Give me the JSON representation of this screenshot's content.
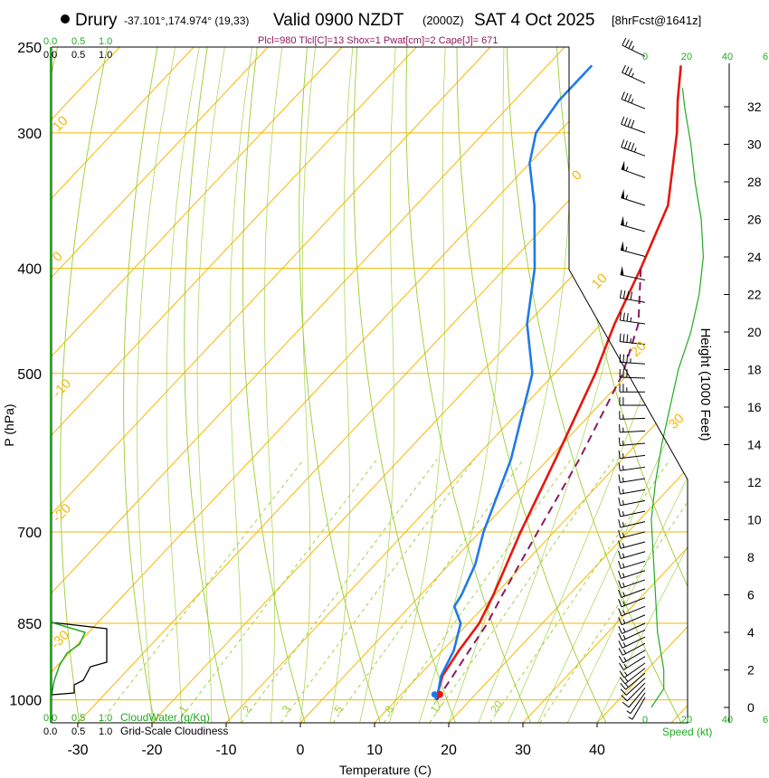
{
  "chart_data": {
    "type": "line",
    "subtype": "skew-t log-p sounding",
    "header": {
      "station": "Drury",
      "coords": "-37.101°,174.974° (19,33)",
      "valid": "Valid 0900 NZDT",
      "utc": "(2000Z)",
      "date": "SAT 4 Oct 2025",
      "fcst": "[8hrFcst@1641z]",
      "params": "Plcl=980 Tlcl[C]=13 Shox=1 Pwat[cm]=2 Cape[J]= 671"
    },
    "xlabel": "Temperature (C)",
    "ylabel": "P (hPa)",
    "y2label": "Height (1000 Feet)",
    "xlim": [
      -35,
      45
    ],
    "ylim": [
      1050,
      250
    ],
    "x_ticks": [
      "-30",
      "-20",
      "-10",
      "0",
      "10",
      "20",
      "30",
      "40"
    ],
    "x_tick_values": [
      -30,
      -20,
      -10,
      0,
      10,
      20,
      30,
      40
    ],
    "p_ticks": [
      "250",
      "300",
      "400",
      "500",
      "700",
      "850",
      "1000"
    ],
    "p_tick_values": [
      250,
      300,
      400,
      500,
      700,
      850,
      1000
    ],
    "height_ticks": [
      "0",
      "2",
      "4",
      "6",
      "8",
      "10",
      "12",
      "14",
      "16",
      "18",
      "20",
      "22",
      "24",
      "26",
      "28",
      "30",
      "32"
    ],
    "height_tick_values": [
      0,
      2,
      4,
      6,
      8,
      10,
      12,
      14,
      16,
      18,
      20,
      22,
      24,
      26,
      28,
      30,
      32
    ],
    "isotherm_labels": [
      {
        "text": "10",
        "v": 10
      },
      {
        "text": "0",
        "v": 0
      },
      {
        "text": "-10",
        "v": -10
      },
      {
        "text": "-20",
        "v": -20
      },
      {
        "text": "-30",
        "v": -30
      },
      {
        "text": "0",
        "v": 0
      },
      {
        "text": "10",
        "v": 10
      },
      {
        "text": "20",
        "v": 20
      },
      {
        "text": "30",
        "v": 30
      }
    ],
    "mixing_ratio_labels": [
      "1",
      "2",
      "3",
      "5",
      "8",
      "12",
      "20"
    ],
    "mixing_ratio_values": [
      1,
      2,
      3,
      5,
      8,
      12,
      20
    ],
    "cloud_scale_top": {
      "green": [
        "0.0",
        "0.5",
        "1.0"
      ],
      "black": [
        "0.0",
        "0.5",
        "1.0"
      ]
    },
    "cloud_scale_bottom": {
      "green": [
        "0.0",
        "0.5",
        "1.0"
      ],
      "black": [
        "0.0",
        "0.5",
        "1.0"
      ]
    },
    "cloud_labels": {
      "water": "CloudWater (g/Kg)",
      "cover": "Grid-Scale Cloudiness"
    },
    "speed_scale_top": [
      "0",
      "20",
      "40",
      "6"
    ],
    "speed_scale_bottom": [
      "0",
      "20",
      "40",
      "6"
    ],
    "speed_label": "Speed (kt)",
    "series": [
      {
        "name": "Temperature",
        "color": "#e8160c",
        "points": [
          [
            1000,
            15.5
          ],
          [
            980,
            14.5
          ],
          [
            950,
            13.2
          ],
          [
            900,
            12.2
          ],
          [
            850,
            11.5
          ],
          [
            800,
            9.8
          ],
          [
            700,
            5.5
          ],
          [
            600,
            1.0
          ],
          [
            500,
            -4.5
          ],
          [
            450,
            -8.2
          ],
          [
            400,
            -11.7
          ],
          [
            350,
            -16.0
          ],
          [
            300,
            -24.0
          ],
          [
            280,
            -28.0
          ],
          [
            260,
            -32.0
          ]
        ]
      },
      {
        "name": "Dewpoint",
        "color": "#1f7ae8",
        "points": [
          [
            1000,
            15.3
          ],
          [
            980,
            14.5
          ],
          [
            950,
            13.0
          ],
          [
            900,
            11.5
          ],
          [
            850,
            9.0
          ],
          [
            820,
            6.0
          ],
          [
            800,
            5.5
          ],
          [
            750,
            3.5
          ],
          [
            700,
            0.5
          ],
          [
            600,
            -5.0
          ],
          [
            500,
            -13.0
          ],
          [
            450,
            -20.0
          ],
          [
            400,
            -26.0
          ],
          [
            350,
            -34.0
          ],
          [
            320,
            -40.0
          ],
          [
            300,
            -43.0
          ],
          [
            280,
            -44.0
          ],
          [
            260,
            -44.0
          ]
        ]
      },
      {
        "name": "Parcel",
        "color": "#8b1a5e",
        "points": [
          [
            1000,
            15.5
          ],
          [
            950,
            14.6
          ],
          [
            900,
            13.6
          ],
          [
            850,
            12.6
          ],
          [
            800,
            11.0
          ],
          [
            700,
            7.8
          ],
          [
            600,
            4.2
          ],
          [
            500,
            -0.8
          ],
          [
            450,
            -5.0
          ],
          [
            400,
            -11.7
          ]
        ]
      }
    ],
    "speed_profile": [
      [
        0,
        3
      ],
      [
        1,
        9
      ],
      [
        2,
        9
      ],
      [
        4,
        6
      ],
      [
        6,
        5
      ],
      [
        8,
        4
      ],
      [
        10,
        3
      ],
      [
        12,
        5
      ],
      [
        14,
        8
      ],
      [
        16,
        12
      ],
      [
        18,
        16
      ],
      [
        20,
        22
      ],
      [
        22,
        26
      ],
      [
        24,
        28
      ],
      [
        26,
        27
      ],
      [
        28,
        24
      ],
      [
        30,
        22
      ],
      [
        32,
        19
      ],
      [
        33,
        18
      ]
    ],
    "wind_barbs": [
      {
        "p": 995,
        "dir": 210,
        "kt": 5
      },
      {
        "p": 985,
        "dir": 215,
        "kt": 8
      },
      {
        "p": 975,
        "dir": 220,
        "kt": 10
      },
      {
        "p": 965,
        "dir": 225,
        "kt": 12
      },
      {
        "p": 955,
        "dir": 228,
        "kt": 14
      },
      {
        "p": 945,
        "dir": 230,
        "kt": 15
      },
      {
        "p": 935,
        "dir": 232,
        "kt": 15
      },
      {
        "p": 925,
        "dir": 235,
        "kt": 15
      },
      {
        "p": 912,
        "dir": 238,
        "kt": 15
      },
      {
        "p": 900,
        "dir": 240,
        "kt": 15
      },
      {
        "p": 887,
        "dir": 242,
        "kt": 15
      },
      {
        "p": 875,
        "dir": 244,
        "kt": 15
      },
      {
        "p": 862,
        "dir": 245,
        "kt": 15
      },
      {
        "p": 850,
        "dir": 246,
        "kt": 15
      },
      {
        "p": 835,
        "dir": 247,
        "kt": 15
      },
      {
        "p": 820,
        "dir": 248,
        "kt": 15
      },
      {
        "p": 805,
        "dir": 249,
        "kt": 15
      },
      {
        "p": 790,
        "dir": 250,
        "kt": 15
      },
      {
        "p": 775,
        "dir": 251,
        "kt": 15
      },
      {
        "p": 760,
        "dir": 252,
        "kt": 15
      },
      {
        "p": 745,
        "dir": 253,
        "kt": 15
      },
      {
        "p": 730,
        "dir": 254,
        "kt": 15
      },
      {
        "p": 715,
        "dir": 255,
        "kt": 15
      },
      {
        "p": 700,
        "dir": 256,
        "kt": 15
      },
      {
        "p": 685,
        "dir": 257,
        "kt": 15
      },
      {
        "p": 670,
        "dir": 258,
        "kt": 15
      },
      {
        "p": 655,
        "dir": 259,
        "kt": 15
      },
      {
        "p": 640,
        "dir": 260,
        "kt": 15
      },
      {
        "p": 625,
        "dir": 261,
        "kt": 15
      },
      {
        "p": 610,
        "dir": 262,
        "kt": 15
      },
      {
        "p": 595,
        "dir": 263,
        "kt": 15
      },
      {
        "p": 580,
        "dir": 265,
        "kt": 15
      },
      {
        "p": 565,
        "dir": 267,
        "kt": 15
      },
      {
        "p": 550,
        "dir": 268,
        "kt": 15
      },
      {
        "p": 535,
        "dir": 270,
        "kt": 20
      },
      {
        "p": 520,
        "dir": 270,
        "kt": 25
      },
      {
        "p": 505,
        "dir": 272,
        "kt": 30
      },
      {
        "p": 490,
        "dir": 274,
        "kt": 35
      },
      {
        "p": 470,
        "dir": 276,
        "kt": 35
      },
      {
        "p": 450,
        "dir": 278,
        "kt": 35
      },
      {
        "p": 430,
        "dir": 280,
        "kt": 40
      },
      {
        "p": 410,
        "dir": 282,
        "kt": 50
      },
      {
        "p": 390,
        "dir": 285,
        "kt": 55
      },
      {
        "p": 370,
        "dir": 286,
        "kt": 55
      },
      {
        "p": 350,
        "dir": 288,
        "kt": 55
      },
      {
        "p": 330,
        "dir": 290,
        "kt": 55
      },
      {
        "p": 315,
        "dir": 290,
        "kt": 45
      },
      {
        "p": 300,
        "dir": 290,
        "kt": 40
      },
      {
        "p": 285,
        "dir": 292,
        "kt": 35
      },
      {
        "p": 270,
        "dir": 295,
        "kt": 35
      },
      {
        "p": 255,
        "dir": 296,
        "kt": 35
      }
    ],
    "colors": {
      "isotherm": "#f5b800",
      "mixing": "#9acd32",
      "adiabat": "#9acd32",
      "temp": "#e8160c",
      "dew": "#1f7ae8",
      "parcel": "#8b1a5e",
      "green": "#22aa22",
      "frame": "#000000"
    }
  }
}
